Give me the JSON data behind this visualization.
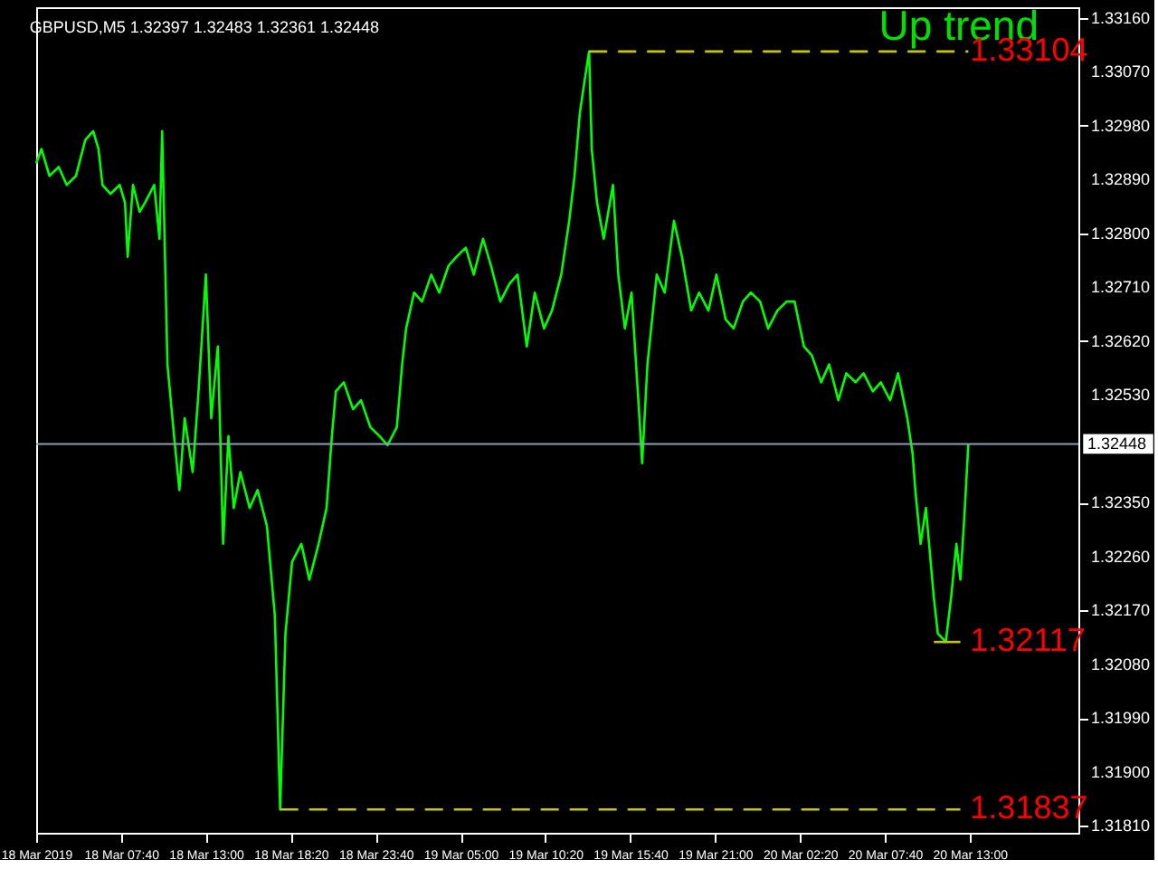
{
  "chart_data": {
    "type": "line",
    "title": "GBPUSD,M5  1.32397 1.32483 1.32361 1.32448",
    "xlim": [
      "2019-03-18T02:20",
      "2019-03-20T19:50"
    ],
    "ylim": [
      1.31798,
      1.33178
    ],
    "xticks": [
      {
        "value": "2019-03-18T02:20",
        "label": "18 Mar 2019"
      },
      {
        "value": "2019-03-18T07:40",
        "label": "18 Mar 07:40"
      },
      {
        "value": "2019-03-18T13:00",
        "label": "18 Mar 13:00"
      },
      {
        "value": "2019-03-18T18:20",
        "label": "18 Mar 18:20"
      },
      {
        "value": "2019-03-18T23:40",
        "label": "18 Mar 23:40"
      },
      {
        "value": "2019-03-19T05:00",
        "label": "19 Mar 05:00"
      },
      {
        "value": "2019-03-19T10:20",
        "label": "19 Mar 10:20"
      },
      {
        "value": "2019-03-19T15:40",
        "label": "19 Mar 15:40"
      },
      {
        "value": "2019-03-19T21:00",
        "label": "19 Mar 21:00"
      },
      {
        "value": "2019-03-20T02:20",
        "label": "20 Mar 02:20"
      },
      {
        "value": "2019-03-20T07:40",
        "label": "20 Mar 07:40"
      },
      {
        "value": "2019-03-20T13:00",
        "label": "20 Mar 13:00"
      }
    ],
    "yticks": [
      {
        "value": 1.3181,
        "label": "1.31810"
      },
      {
        "value": 1.319,
        "label": "1.31900"
      },
      {
        "value": 1.3199,
        "label": "1.31990"
      },
      {
        "value": 1.3208,
        "label": "1.32080"
      },
      {
        "value": 1.3217,
        "label": "1.32170"
      },
      {
        "value": 1.3226,
        "label": "1.32260"
      },
      {
        "value": 1.3235,
        "label": "1.32350"
      },
      {
        "value": 1.3253,
        "label": "1.32530"
      },
      {
        "value": 1.3262,
        "label": "1.32620"
      },
      {
        "value": 1.3271,
        "label": "1.32710"
      },
      {
        "value": 1.328,
        "label": "1.32800"
      },
      {
        "value": 1.3289,
        "label": "1.32890"
      },
      {
        "value": 1.3298,
        "label": "1.32980"
      },
      {
        "value": 1.3307,
        "label": "1.33070"
      },
      {
        "value": 1.3316,
        "label": "1.33160"
      }
    ],
    "marker": "none",
    "series": [
      {
        "color": "#00ff00",
        "line_style": "solid",
        "x": [
          "2019-03-18T02:20",
          "2019-03-18T02:40",
          "2019-03-18T03:10",
          "2019-03-18T03:45",
          "2019-03-18T04:15",
          "2019-03-18T04:50",
          "2019-03-18T05:25",
          "2019-03-18T05:55",
          "2019-03-18T06:15",
          "2019-03-18T06:30",
          "2019-03-18T07:00",
          "2019-03-18T07:35",
          "2019-03-18T07:55",
          "2019-03-18T08:05",
          "2019-03-18T08:25",
          "2019-03-18T08:50",
          "2019-03-18T09:10",
          "2019-03-18T09:45",
          "2019-03-18T10:05",
          "2019-03-18T10:15",
          "2019-03-18T10:35",
          "2019-03-18T11:00",
          "2019-03-18T11:20",
          "2019-03-18T11:40",
          "2019-03-18T12:10",
          "2019-03-18T12:30",
          "2019-03-18T13:00",
          "2019-03-18T13:20",
          "2019-03-18T13:45",
          "2019-03-18T14:05",
          "2019-03-18T14:25",
          "2019-03-18T14:45",
          "2019-03-18T15:10",
          "2019-03-18T15:45",
          "2019-03-18T16:15",
          "2019-03-18T16:50",
          "2019-03-18T17:20",
          "2019-03-18T17:40",
          "2019-03-18T18:00",
          "2019-03-18T18:25",
          "2019-03-18T19:00",
          "2019-03-18T19:30",
          "2019-03-18T20:05",
          "2019-03-18T20:35",
          "2019-03-18T20:55",
          "2019-03-18T21:10",
          "2019-03-18T21:40",
          "2019-03-18T22:15",
          "2019-03-18T22:45",
          "2019-03-18T23:20",
          "2019-03-18T23:55",
          "2019-03-19T00:25",
          "2019-03-19T01:00",
          "2019-03-19T01:20",
          "2019-03-19T01:35",
          "2019-03-19T02:05",
          "2019-03-19T02:35",
          "2019-03-19T03:10",
          "2019-03-19T03:40",
          "2019-03-19T04:15",
          "2019-03-19T04:45",
          "2019-03-19T05:20",
          "2019-03-19T05:50",
          "2019-03-19T06:25",
          "2019-03-19T06:55",
          "2019-03-19T07:30",
          "2019-03-19T08:05",
          "2019-03-19T08:35",
          "2019-03-19T09:10",
          "2019-03-19T09:40",
          "2019-03-19T10:15",
          "2019-03-19T10:45",
          "2019-03-19T11:20",
          "2019-03-19T11:50",
          "2019-03-19T12:10",
          "2019-03-19T12:30",
          "2019-03-19T12:50",
          "2019-03-19T13:05",
          "2019-03-19T13:15",
          "2019-03-19T13:35",
          "2019-03-19T14:00",
          "2019-03-19T14:35",
          "2019-03-19T14:55",
          "2019-03-19T15:20",
          "2019-03-19T15:45",
          "2019-03-19T16:15",
          "2019-03-19T16:25",
          "2019-03-19T16:45",
          "2019-03-19T17:20",
          "2019-03-19T17:50",
          "2019-03-19T18:25",
          "2019-03-19T18:55",
          "2019-03-19T19:30",
          "2019-03-19T20:00",
          "2019-03-19T20:35",
          "2019-03-19T21:05",
          "2019-03-19T21:40",
          "2019-03-19T22:10",
          "2019-03-19T22:45",
          "2019-03-19T23:15",
          "2019-03-19T23:50",
          "2019-03-20T00:20",
          "2019-03-20T00:55",
          "2019-03-20T01:30",
          "2019-03-20T02:00",
          "2019-03-20T02:35",
          "2019-03-20T03:05",
          "2019-03-20T03:40",
          "2019-03-20T04:10",
          "2019-03-20T04:45",
          "2019-03-20T05:15",
          "2019-03-20T05:50",
          "2019-03-20T06:20",
          "2019-03-20T06:55",
          "2019-03-20T07:25",
          "2019-03-20T08:00",
          "2019-03-20T08:30",
          "2019-03-20T09:05",
          "2019-03-20T09:25",
          "2019-03-20T09:35",
          "2019-03-20T09:55",
          "2019-03-20T10:15",
          "2019-03-20T10:45",
          "2019-03-20T11:00",
          "2019-03-20T11:30",
          "2019-03-20T11:50",
          "2019-03-20T12:10",
          "2019-03-20T12:25",
          "2019-03-20T12:40",
          "2019-03-20T12:55"
        ],
        "values": [
          1.32917,
          1.32941,
          1.32896,
          1.32911,
          1.32881,
          1.32896,
          1.32956,
          1.32971,
          1.32941,
          1.32881,
          1.32866,
          1.32881,
          1.32851,
          1.32761,
          1.32881,
          1.32836,
          1.32851,
          1.32881,
          1.32791,
          1.32971,
          1.32581,
          1.32461,
          1.32371,
          1.32491,
          1.32401,
          1.32521,
          1.32731,
          1.32491,
          1.32611,
          1.32281,
          1.32461,
          1.32341,
          1.32401,
          1.32341,
          1.32371,
          1.32311,
          1.32161,
          1.31837,
          1.32131,
          1.32251,
          1.32281,
          1.32221,
          1.32281,
          1.32341,
          1.32461,
          1.32536,
          1.32551,
          1.32506,
          1.32521,
          1.32476,
          1.32461,
          1.32446,
          1.32476,
          1.32581,
          1.32641,
          1.32701,
          1.32686,
          1.32731,
          1.32701,
          1.32746,
          1.32761,
          1.32776,
          1.32731,
          1.32791,
          1.32746,
          1.32686,
          1.32716,
          1.32731,
          1.32611,
          1.32701,
          1.32641,
          1.32671,
          1.32731,
          1.32821,
          1.32896,
          1.33001,
          1.33061,
          1.33104,
          1.32941,
          1.32851,
          1.32791,
          1.32881,
          1.32731,
          1.32641,
          1.32701,
          1.32491,
          1.32416,
          1.32581,
          1.32731,
          1.32701,
          1.32821,
          1.32761,
          1.32671,
          1.32701,
          1.32671,
          1.32731,
          1.32656,
          1.32641,
          1.32686,
          1.32701,
          1.32686,
          1.32641,
          1.32671,
          1.32686,
          1.32686,
          1.32611,
          1.32596,
          1.32551,
          1.32581,
          1.32521,
          1.32566,
          1.32551,
          1.32566,
          1.32536,
          1.32551,
          1.32521,
          1.32566,
          1.32491,
          1.32431,
          1.32371,
          1.32281,
          1.32341,
          1.32191,
          1.32131,
          1.32117,
          1.32191,
          1.32281,
          1.32221,
          1.32326,
          1.32448
        ]
      },
      {
        "color": "#c8c800",
        "line_style": "dashed",
        "x": [
          "2019-03-19T13:05",
          "2019-03-20T12:55"
        ],
        "values": [
          1.33104,
          1.33104
        ]
      },
      {
        "color": "#c8c800",
        "line_style": "dashed",
        "x": [
          "2019-03-18T17:40",
          "2019-03-20T12:25"
        ],
        "values": [
          1.31837,
          1.31837
        ]
      },
      {
        "color": "#c8c800",
        "line_style": "solid",
        "x": [
          "2019-03-20T10:45",
          "2019-03-20T12:25"
        ],
        "values": [
          1.32117,
          1.32117
        ]
      }
    ],
    "ref_lines": [
      {
        "axis": "y",
        "value": 1.32448,
        "label": "1.32448",
        "color": "#8da0b4"
      }
    ],
    "annotations": [
      "Up trend",
      {
        "text": "1.33104",
        "x": "2019-03-20T12:55",
        "y": 1.33104
      },
      {
        "text": "1.32117",
        "x": "2019-03-20T12:55",
        "y": 1.32117
      },
      {
        "text": "1.31837",
        "x": "2019-03-20T12:55",
        "y": 1.31837
      }
    ]
  }
}
